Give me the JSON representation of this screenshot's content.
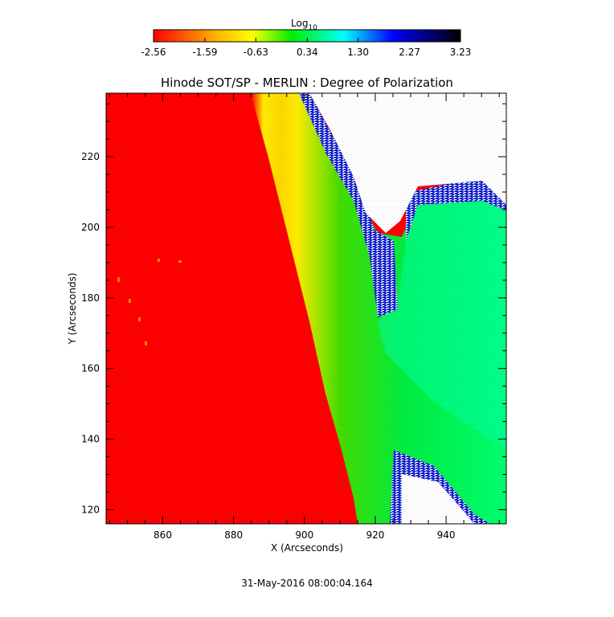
{
  "chart_data": {
    "type": "heatmap",
    "title": "Hinode SOT/SP - MERLIN : Degree of Polarization",
    "xlabel": "X (Arcseconds)",
    "ylabel": "Y (Arcseconds)",
    "xlim": [
      844,
      957
    ],
    "ylim": [
      116,
      238
    ],
    "xticks": [
      "860",
      "880",
      "900",
      "920",
      "940"
    ],
    "yticks": [
      "120",
      "140",
      "160",
      "180",
      "200",
      "220"
    ],
    "colorbar": {
      "label": "Log",
      "label_subscript": "10",
      "ticks": [
        "-2.56",
        "-1.59",
        "-0.63",
        "0.34",
        "1.30",
        "2.27",
        "3.23"
      ],
      "range": [
        -2.56,
        3.23
      ],
      "colors": [
        "#ff0000",
        "#ffb000",
        "#ffff00",
        "#00ee00",
        "#00ffff",
        "#0000ff",
        "#000000"
      ]
    },
    "timestamp": "31-May-2016 08:00:04.164"
  }
}
